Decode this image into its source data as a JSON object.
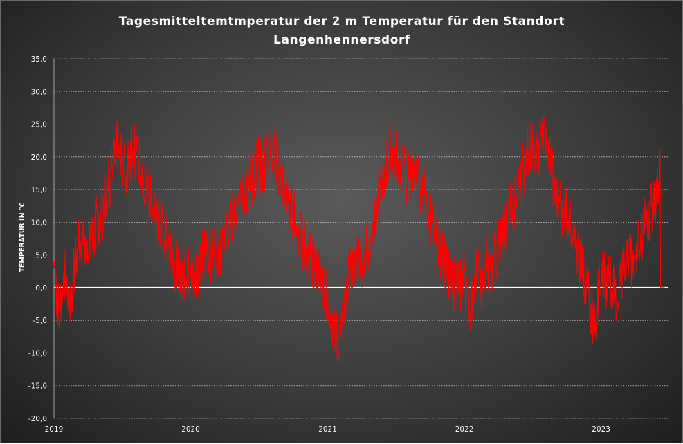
{
  "chart_data": {
    "type": "line",
    "title": [
      "Tagesmitteltemtmperatur  der 2 m Temperatur  für den Standort",
      "Langenhennersdorf"
    ],
    "xlabel": "",
    "ylabel": "TEMPERATUR IN °C",
    "ylim": [
      -20,
      35
    ],
    "y_ticks": [
      "-20,0",
      "-15,0",
      "-10,0",
      "-5,0",
      "0,0",
      "5,0",
      "10,0",
      "15,0",
      "20,0",
      "25,0",
      "30,0",
      "35,0"
    ],
    "x_ticks": [
      "2019",
      "2020",
      "2021",
      "2022",
      "2023"
    ],
    "grid": true,
    "legend": "none",
    "series_color": "#ff0000",
    "zero_line_color": "#ffffff",
    "series": [
      {
        "x": [
          "2019-01-01",
          "2019-01-15",
          "2019-02-01",
          "2019-02-15",
          "2019-03-01",
          "2019-03-15",
          "2019-04-01",
          "2019-04-15",
          "2019-05-01",
          "2019-05-15",
          "2019-06-01",
          "2019-06-15",
          "2019-07-01",
          "2019-07-15",
          "2019-08-01",
          "2019-08-15",
          "2019-09-01",
          "2019-09-15",
          "2019-10-01",
          "2019-10-15",
          "2019-11-01",
          "2019-11-15",
          "2019-12-01",
          "2019-12-15",
          "2020-01-01",
          "2020-01-15",
          "2020-02-01",
          "2020-02-15",
          "2020-03-01",
          "2020-03-15",
          "2020-04-01",
          "2020-04-15",
          "2020-05-01",
          "2020-05-15",
          "2020-06-01",
          "2020-06-15",
          "2020-07-01",
          "2020-07-15",
          "2020-08-01",
          "2020-08-15",
          "2020-09-01",
          "2020-09-15",
          "2020-10-01",
          "2020-10-15",
          "2020-11-01",
          "2020-11-15",
          "2020-12-01",
          "2020-12-15",
          "2021-01-01",
          "2021-01-15",
          "2021-02-01",
          "2021-02-15",
          "2021-03-01",
          "2021-03-15",
          "2021-04-01",
          "2021-04-15",
          "2021-05-01",
          "2021-05-15",
          "2021-06-01",
          "2021-06-15",
          "2021-07-01",
          "2021-07-15",
          "2021-08-01",
          "2021-08-15",
          "2021-09-01",
          "2021-09-15",
          "2021-10-01",
          "2021-10-15",
          "2021-11-01",
          "2021-11-15",
          "2021-12-01",
          "2021-12-15",
          "2022-01-01",
          "2022-01-15",
          "2022-02-01",
          "2022-02-15",
          "2022-03-01",
          "2022-03-15",
          "2022-04-01",
          "2022-04-15",
          "2022-05-01",
          "2022-05-15",
          "2022-06-01",
          "2022-06-15",
          "2022-07-01",
          "2022-07-15",
          "2022-08-01",
          "2022-08-15",
          "2022-09-01",
          "2022-09-15",
          "2022-10-01",
          "2022-10-15",
          "2022-11-01",
          "2022-11-15",
          "2022-12-01",
          "2022-12-15",
          "2023-01-01",
          "2023-01-15",
          "2023-02-01",
          "2023-02-15",
          "2023-03-01",
          "2023-03-15",
          "2023-04-01",
          "2023-04-15",
          "2023-05-01",
          "2023-05-15",
          "2023-06-01",
          "2023-06-08",
          "2023-06-09",
          "2023-06-20"
        ],
        "values": [
          1.0,
          -4.0,
          2.0,
          -2.0,
          5.0,
          7.0,
          6.0,
          9.0,
          10.0,
          12.0,
          17.0,
          22.0,
          20.0,
          18.0,
          21.0,
          20.0,
          15.0,
          13.0,
          11.0,
          9.0,
          7.0,
          4.0,
          3.0,
          1.0,
          3.0,
          2.0,
          5.0,
          4.0,
          6.0,
          4.0,
          8.0,
          10.0,
          11.0,
          13.0,
          15.0,
          17.0,
          19.0,
          18.0,
          22.0,
          20.0,
          16.0,
          14.0,
          11.0,
          9.0,
          6.0,
          4.0,
          2.0,
          1.0,
          -1.0,
          -5.0,
          -8.0,
          -4.0,
          3.0,
          4.0,
          3.0,
          6.0,
          9.0,
          12.0,
          18.0,
          21.0,
          20.0,
          19.0,
          17.0,
          18.0,
          16.0,
          14.0,
          10.0,
          8.0,
          5.0,
          3.0,
          1.0,
          -1.0,
          2.0,
          -3.0,
          3.0,
          1.0,
          4.0,
          3.0,
          6.0,
          8.0,
          11.0,
          13.0,
          17.0,
          19.0,
          22.0,
          21.0,
          22.0,
          20.0,
          15.0,
          12.0,
          11.0,
          9.0,
          5.0,
          2.0,
          -2.0,
          -6.0,
          3.0,
          1.0,
          0.0,
          -2.0,
          2.0,
          5.0,
          4.0,
          7.0,
          10.0,
          12.0,
          15.0,
          17.0,
          0.0,
          0.0
        ]
      }
    ]
  }
}
